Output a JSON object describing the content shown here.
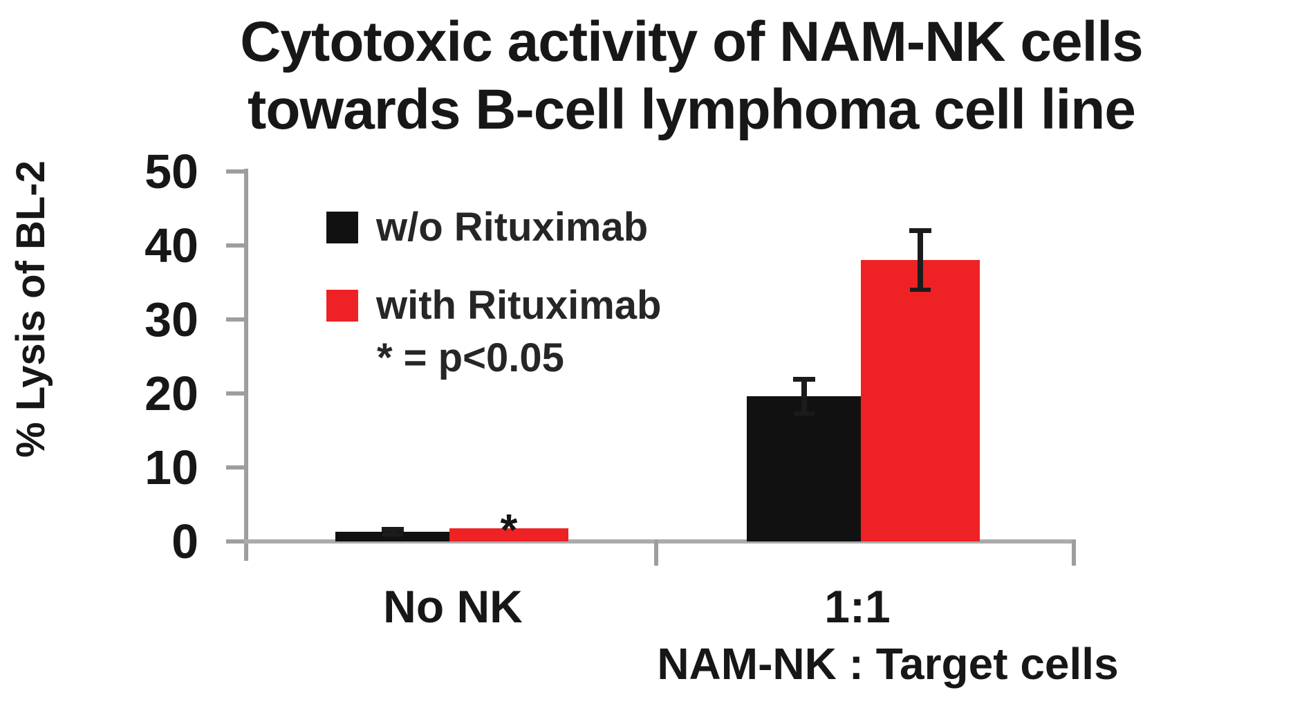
{
  "title": {
    "line1": "Cytotoxic activity of NAM-NK cells",
    "line2": "towards B-cell lymphoma cell line"
  },
  "chart_data": {
    "type": "bar",
    "title": "Cytotoxic activity of NAM-NK cells towards B-cell lymphoma cell line",
    "categories": [
      "No NK",
      "1:1"
    ],
    "series": [
      {
        "name": "w/o Rituximab",
        "color": "#111111",
        "values": [
          1.3,
          19.6
        ],
        "errors": [
          0.4,
          2.3
        ]
      },
      {
        "name": "with Rituximab",
        "color": "#ee2224",
        "values": [
          1.8,
          38.0
        ],
        "errors": [
          null,
          4.0
        ]
      }
    ],
    "annotations": [
      {
        "text": "*",
        "category": "No NK",
        "series": "with Rituximab",
        "meaning": "p<0.05"
      }
    ],
    "significance_note": "* = p<0.05",
    "ylabel": "% Lysis of BL-2",
    "xlabel": "NAM-NK : Target cells",
    "ylim": [
      0,
      50
    ],
    "yticks": [
      0,
      10,
      20,
      30,
      40,
      50
    ],
    "grid": false,
    "legend_position": "upper-left-inside",
    "axis_color": "#9e9e9e",
    "error_bar_color": "#1b1b1b"
  }
}
